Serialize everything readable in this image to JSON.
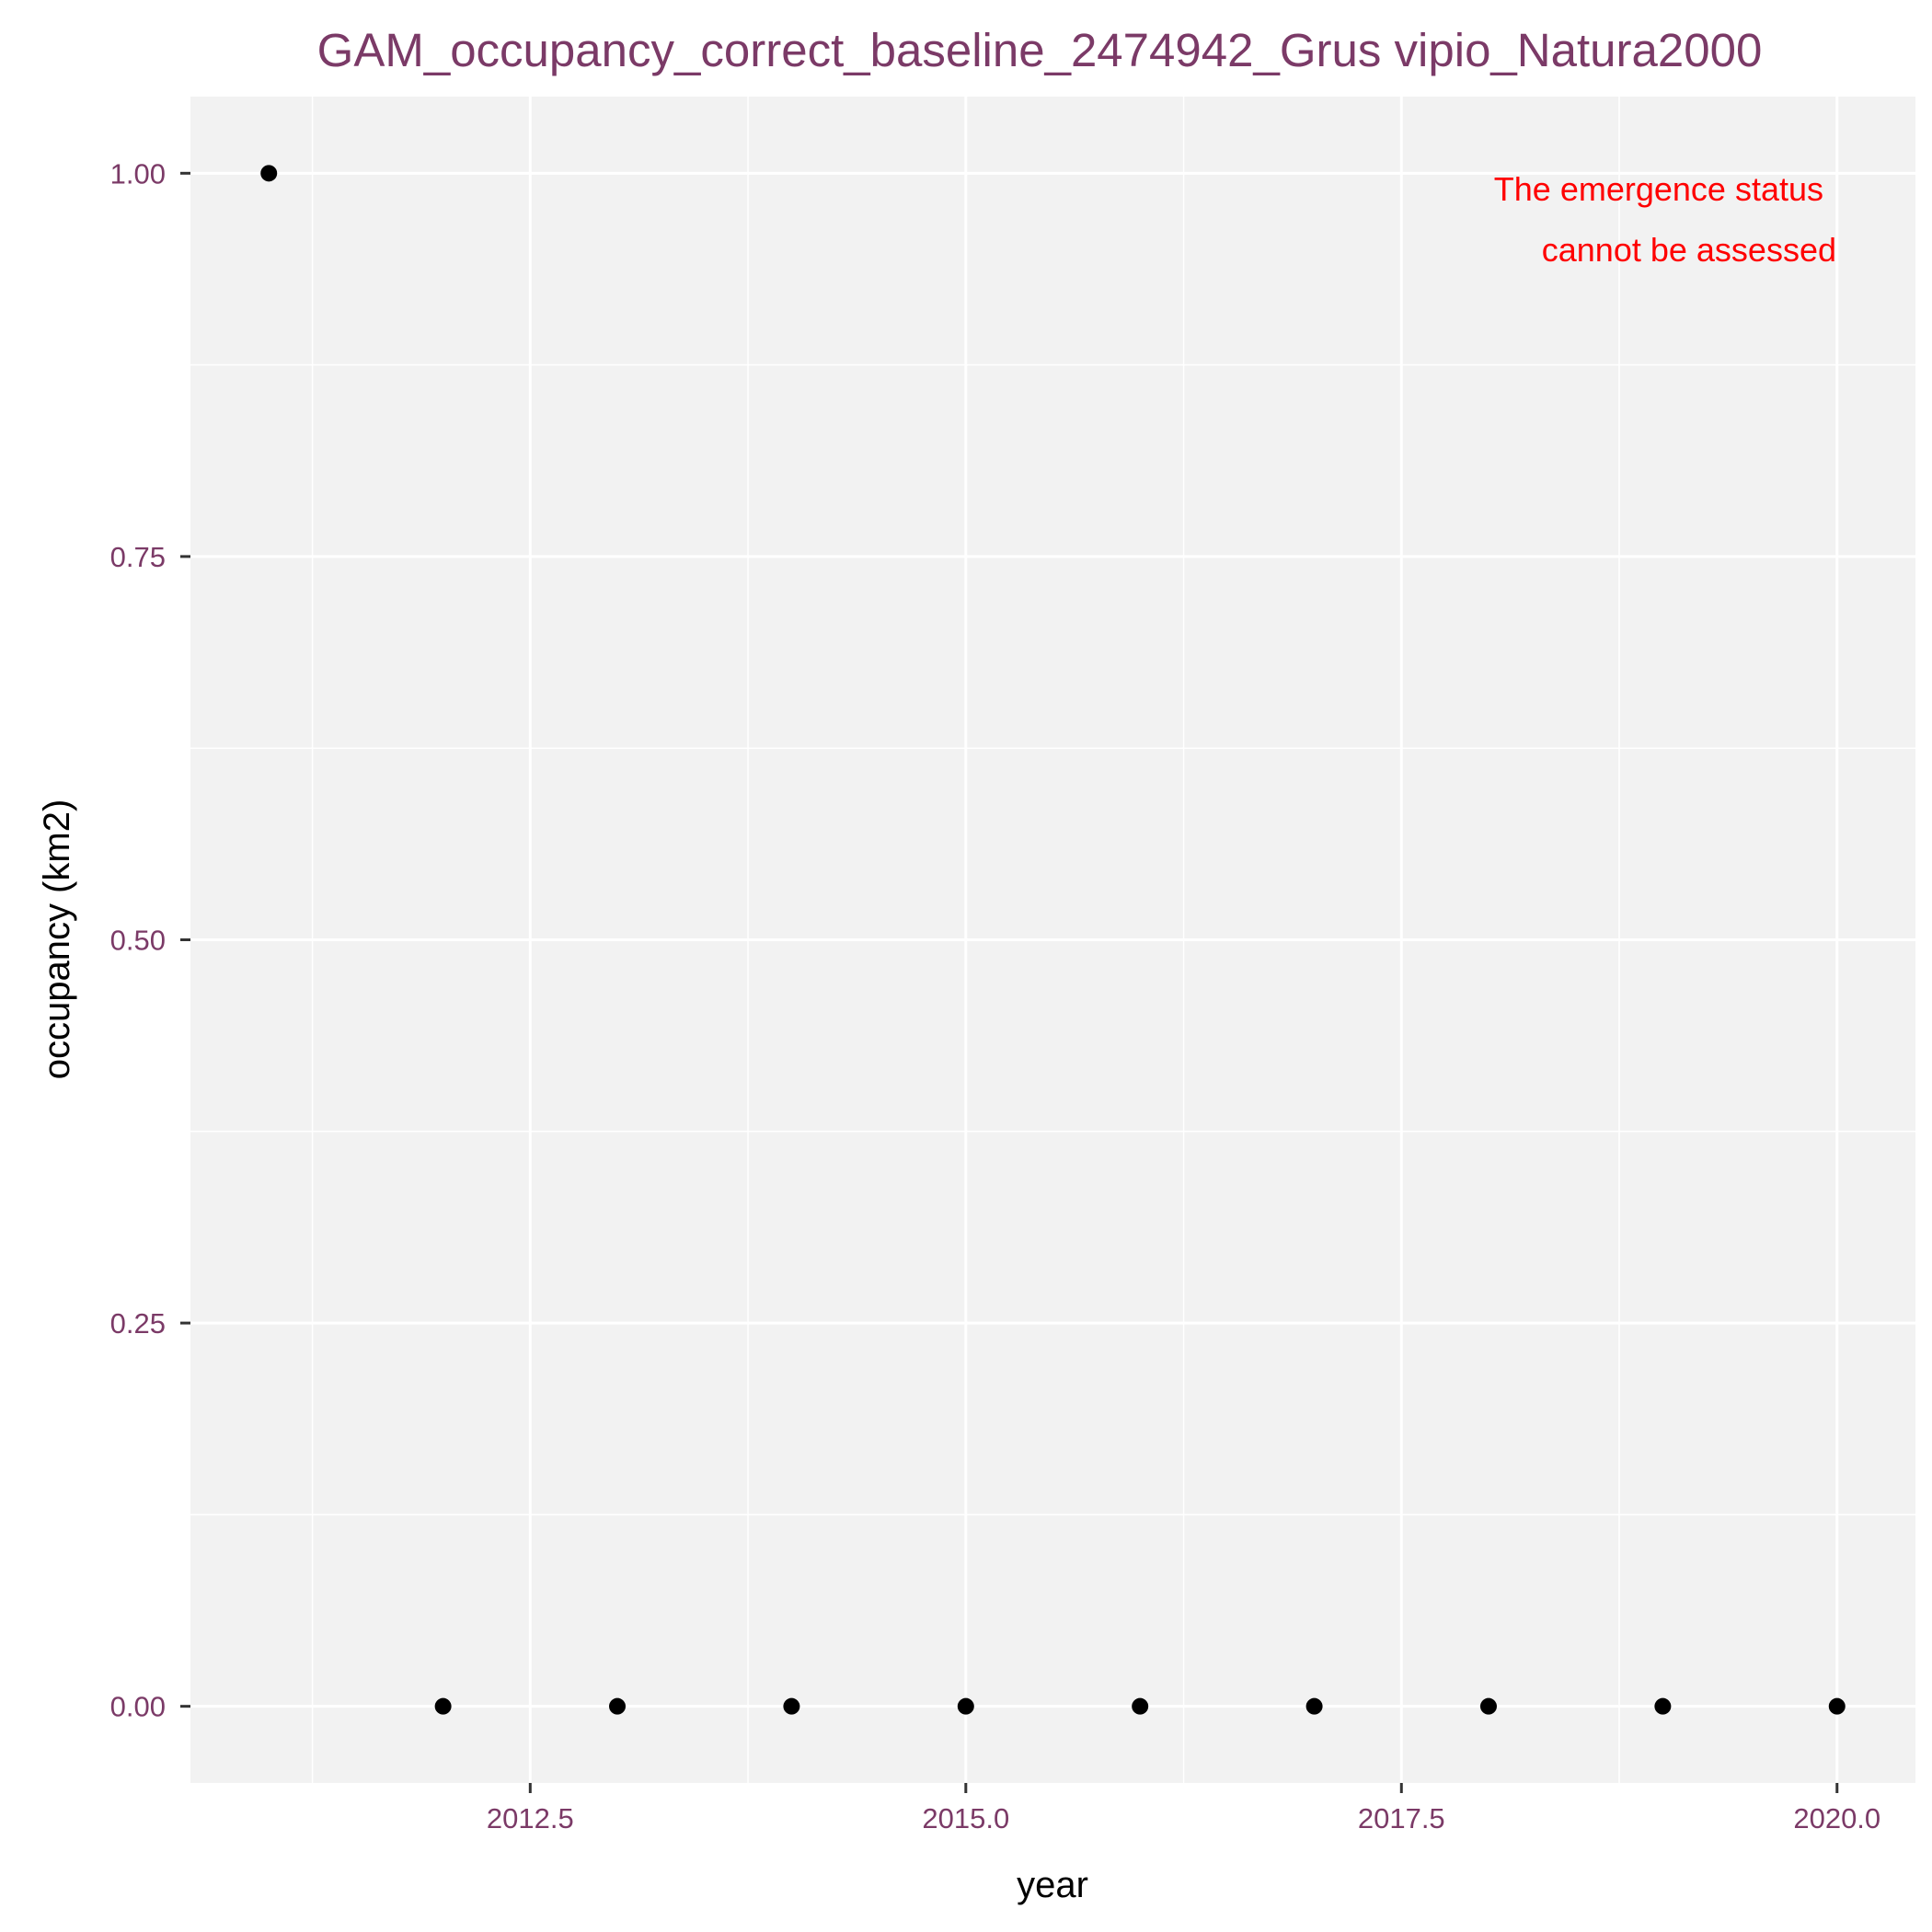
{
  "chart_data": {
    "type": "scatter",
    "title": "GAM_occupancy_correct_baseline_2474942_Grus vipio_Natura2000",
    "xlabel": "year",
    "ylabel": "occupancy (km2)",
    "xlim": [
      2010.55,
      2020.45
    ],
    "ylim": [
      -0.05,
      1.05
    ],
    "x_ticks": [
      2012.5,
      2015.0,
      2017.5,
      2020.0
    ],
    "x_tick_labels": [
      "2012.5",
      "2015.0",
      "2017.5",
      "2020.0"
    ],
    "y_ticks": [
      0.0,
      0.25,
      0.5,
      0.75,
      1.0
    ],
    "y_tick_labels": [
      "0.00",
      "0.25",
      "0.50",
      "0.75",
      "1.00"
    ],
    "grid": true,
    "series": [
      {
        "x": [
          2011,
          2012,
          2013,
          2014,
          2015,
          2016,
          2017,
          2018,
          2019,
          2020
        ],
        "y": [
          1,
          0,
          0,
          0,
          0,
          0,
          0,
          0,
          0,
          0
        ]
      }
    ],
    "annotation": {
      "lines": [
        "The emergence status",
        "cannot be assessed"
      ],
      "color": "#ff0000"
    },
    "colors": {
      "title": "#7b3a67",
      "tick_label": "#7b3a67",
      "panel": "#f2f2f2",
      "grid": "#ffffff",
      "point": "#000000",
      "axis_title": "#000000"
    }
  }
}
